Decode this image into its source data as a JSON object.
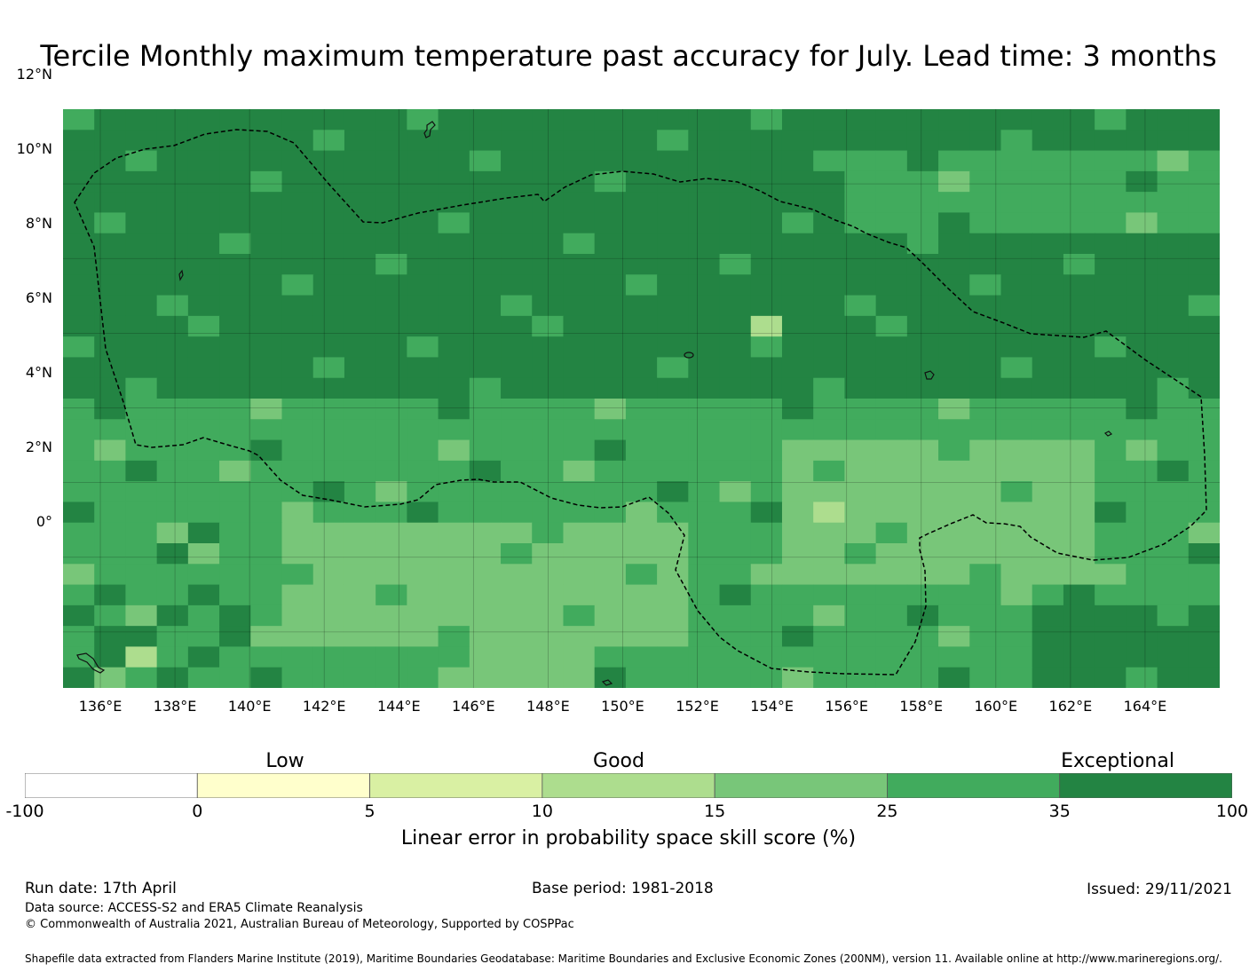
{
  "title": "Tercile Monthly maximum temperature past accuracy for July. Lead time: 3 months",
  "map": {
    "lat_labels": [
      "12°N",
      "10°N",
      "8°N",
      "6°N",
      "4°N",
      "2°N",
      "0°"
    ],
    "lat_values": [
      12,
      10,
      8,
      6,
      4,
      2,
      0
    ],
    "lon_labels": [
      "136°E",
      "138°E",
      "140°E",
      "142°E",
      "144°E",
      "146°E",
      "148°E",
      "150°E",
      "152°E",
      "154°E",
      "156°E",
      "158°E",
      "160°E",
      "162°E",
      "164°E"
    ],
    "lon_values": [
      136,
      138,
      140,
      142,
      144,
      146,
      148,
      150,
      152,
      154,
      156,
      158,
      160,
      162,
      164
    ],
    "lon_range": [
      135,
      166
    ],
    "lat_range": [
      -1.5,
      14
    ],
    "boundary": "Federated States of Micronesia EEZ (dashed)"
  },
  "legend": {
    "categories": [
      "Low",
      "Good",
      "Exceptional"
    ],
    "ticks": [
      "-100",
      "0",
      "5",
      "10",
      "15",
      "25",
      "35",
      "100"
    ],
    "colors": [
      "#ffffff",
      "#ffffcc",
      "#d9f0a3",
      "#addd8e",
      "#78c679",
      "#41ab5d",
      "#238443"
    ],
    "label": "Linear error in probability space skill score (%)"
  },
  "footer": {
    "run_date": "Run date: 17th April",
    "base_period": "Base period: 1981-2018",
    "issued": "Issued: 29/11/2021",
    "data_source": "Data source: ACCESS-S2 and ERA5 Climate Reanalysis",
    "copyright": "© Commonwealth of Australia 2021, Australian Bureau of Meteorology, Supported by COSPPac",
    "shapefile": "Shapefile data extracted from Flanders Marine Institute (2019), Maritime Boundaries Geodatabase: Maritime Boundaries and Exclusive Economic Zones (200NM), version 11. Available online at http://www.marineregions.org/."
  }
}
